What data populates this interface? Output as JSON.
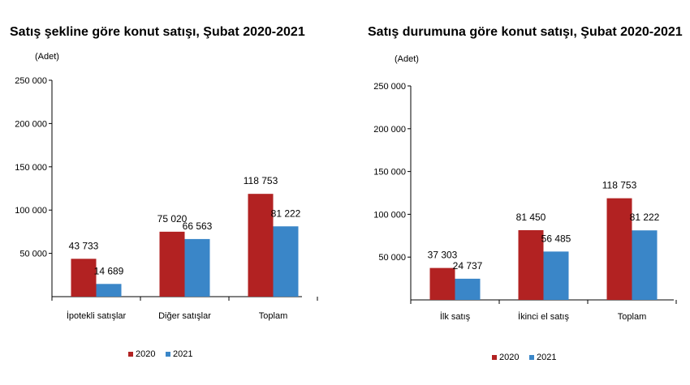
{
  "colors": {
    "y2020": "#b22222",
    "y2021": "#3a86c8"
  },
  "chart_data": [
    {
      "type": "bar",
      "title": "Satış şekline göre konut satışı, Şubat 2020-2021",
      "ylabel": "(Adet)",
      "ylim": [
        0,
        250000
      ],
      "y_ticks": [
        50000,
        100000,
        150000,
        200000,
        250000
      ],
      "y_tick_labels": [
        "50 000",
        "100 000",
        "150 000",
        "200 000",
        "250 000"
      ],
      "categories": [
        "İpotekli satışlar",
        "Diğer satışlar",
        "Toplam"
      ],
      "series": [
        {
          "name": "2020",
          "values": [
            43733,
            75020,
            118753
          ],
          "labels": [
            "43 733",
            "75 020",
            "118 753"
          ]
        },
        {
          "name": "2021",
          "values": [
            14689,
            66563,
            81222
          ],
          "labels": [
            "14 689",
            "66 563",
            "81 222"
          ]
        }
      ],
      "legend": "bottom"
    },
    {
      "type": "bar",
      "title": "Satış durumuna göre konut satışı, Şubat 2020-2021",
      "ylabel": "(Adet)",
      "ylim": [
        0,
        250000
      ],
      "y_ticks": [
        50000,
        100000,
        150000,
        200000,
        250000
      ],
      "y_tick_labels": [
        "50 000",
        "100 000",
        "150 000",
        "200 000",
        "250 000"
      ],
      "categories": [
        "İlk satış",
        "İkinci el satış",
        "Toplam"
      ],
      "series": [
        {
          "name": "2020",
          "values": [
            37303,
            81450,
            118753
          ],
          "labels": [
            "37 303",
            "81 450",
            "118 753"
          ]
        },
        {
          "name": "2021",
          "values": [
            24737,
            56485,
            81222
          ],
          "labels": [
            "24 737",
            "56 485",
            "81 222"
          ]
        }
      ],
      "legend": "bottom"
    }
  ]
}
